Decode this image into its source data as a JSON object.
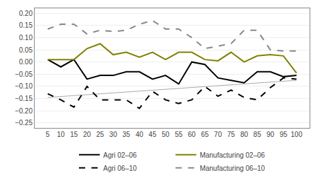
{
  "chart_data": {
    "type": "line",
    "x": [
      5,
      10,
      15,
      20,
      25,
      30,
      35,
      40,
      45,
      50,
      55,
      60,
      65,
      70,
      75,
      80,
      85,
      90,
      95,
      100
    ],
    "series": [
      {
        "x": [
          5,
          100
        ],
        "values": [
          -0.145,
          -0.075
        ],
        "color": "#aaaaaa",
        "line_style": "solid"
      },
      {
        "name": "Agri 02–06",
        "color": "#000000",
        "line_style": "solid",
        "values": [
          0.01,
          -0.02,
          0.01,
          -0.07,
          -0.055,
          -0.055,
          -0.04,
          -0.04,
          -0.07,
          -0.055,
          -0.09,
          0.0,
          -0.01,
          -0.065,
          -0.075,
          -0.085,
          -0.04,
          -0.04,
          -0.06,
          -0.055
        ]
      },
      {
        "name": "Manufacturing 02–06",
        "color": "#808000",
        "line_style": "solid",
        "values": [
          0.01,
          0.01,
          0.01,
          0.055,
          0.075,
          0.03,
          0.04,
          0.02,
          0.04,
          0.01,
          0.04,
          0.04,
          0.01,
          0.005,
          0.04,
          0.0,
          0.025,
          0.03,
          0.025,
          -0.045
        ]
      },
      {
        "name": "Agri 06–10",
        "color": "#000000",
        "line_style": "dashed",
        "values": [
          -0.13,
          -0.155,
          -0.185,
          -0.1,
          -0.155,
          -0.155,
          -0.155,
          -0.19,
          -0.12,
          -0.155,
          -0.17,
          -0.155,
          -0.1,
          -0.14,
          -0.115,
          -0.145,
          -0.155,
          -0.105,
          -0.065,
          -0.07
        ]
      },
      {
        "name": "Manufacturing 06–10",
        "color": "#888888",
        "line_style": "dashed",
        "values": [
          0.135,
          0.155,
          0.155,
          0.115,
          0.13,
          0.125,
          0.13,
          0.155,
          0.17,
          0.135,
          0.135,
          0.1,
          0.055,
          0.065,
          0.075,
          0.13,
          0.13,
          0.05,
          0.045,
          0.045
        ]
      }
    ],
    "xlim": [
      0,
      105
    ],
    "xticks": [
      5,
      10,
      15,
      20,
      25,
      30,
      35,
      40,
      45,
      50,
      55,
      60,
      65,
      70,
      75,
      80,
      85,
      90,
      95,
      100
    ],
    "ylim": [
      -0.27,
      0.22
    ],
    "yticks": [
      {
        "value": -0.25,
        "label": "−0.25"
      },
      {
        "value": -0.2,
        "label": "−0.20"
      },
      {
        "value": -0.15,
        "label": "−0.15"
      },
      {
        "value": -0.1,
        "label": "−0.10"
      },
      {
        "value": -0.05,
        "label": "−0.05"
      },
      {
        "value": 0.0,
        "label": "0.00"
      },
      {
        "value": 0.05,
        "label": "0.05"
      },
      {
        "value": 0.1,
        "label": "0.10"
      },
      {
        "value": 0.15,
        "label": "0.15"
      },
      {
        "value": 0.2,
        "label": "0.20"
      }
    ],
    "grid": true,
    "legend": "bottom"
  }
}
